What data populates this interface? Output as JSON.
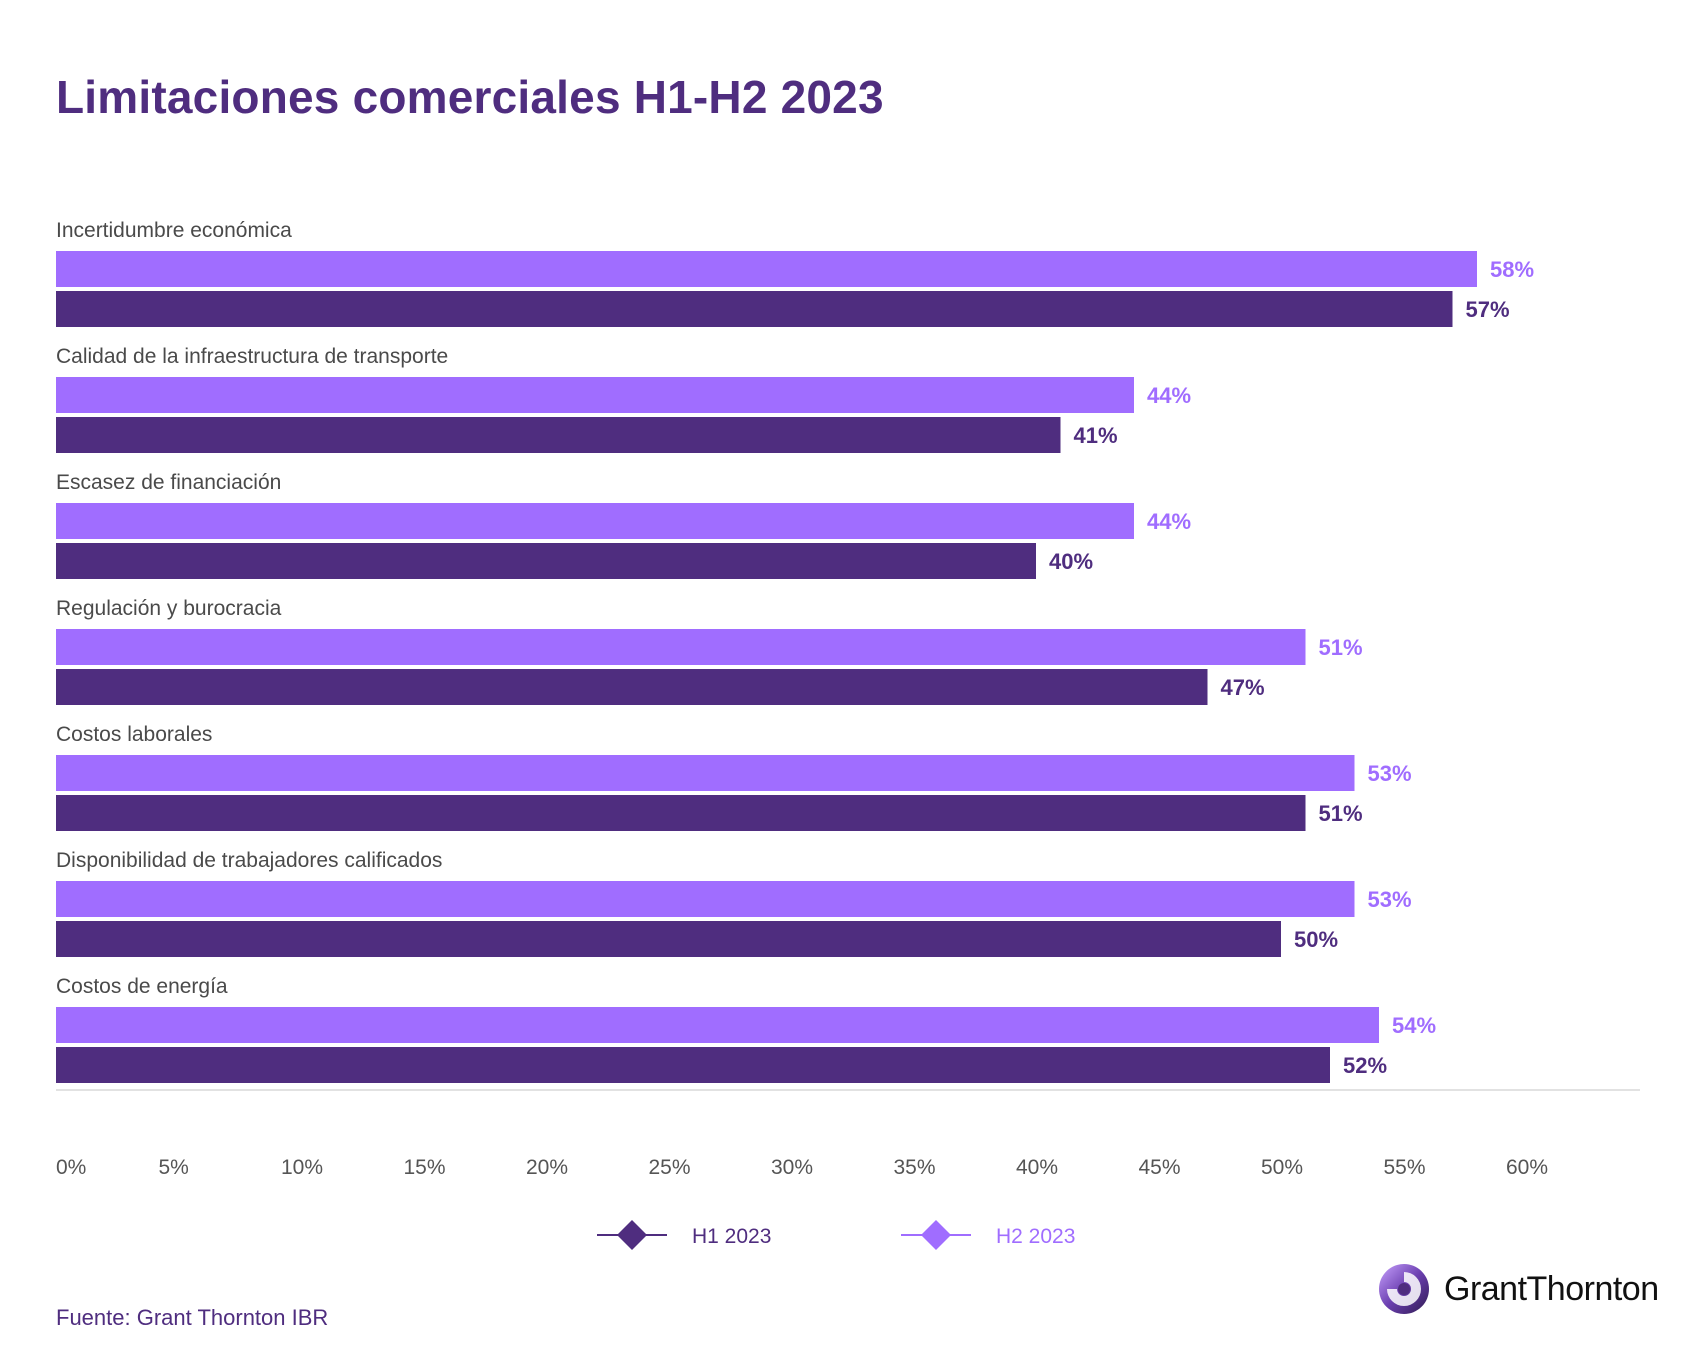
{
  "title": "Limitaciones comerciales H1-H2 2023",
  "source": "Fuente: Grant Thornton IBR",
  "brand": {
    "name": "GrantThornton",
    "logo_icon": "grant-thornton-logo-icon"
  },
  "colors": {
    "h1": "#4f2d7f",
    "h2": "#a06dff",
    "title": "#4f2d7f",
    "axis": "#d9d9d9"
  },
  "chart_data": {
    "type": "bar",
    "orientation": "horizontal",
    "categories": [
      "Incertidumbre económica",
      "Calidad de la infraestructura de transporte",
      "Escasez de financiación",
      "Regulación y burocracia",
      "Costos laborales",
      "Disponibilidad de trabajadores calificados",
      "Costos de energía"
    ],
    "series": [
      {
        "name": "H2 2023",
        "values": [
          58,
          44,
          44,
          51,
          53,
          53,
          54
        ],
        "labels": [
          "58%",
          "44%",
          "44%",
          "51%",
          "53%",
          "53%",
          "54%"
        ]
      },
      {
        "name": "H1 2023",
        "values": [
          57,
          41,
          40,
          47,
          51,
          50,
          52
        ],
        "labels": [
          "57%",
          "41%",
          "40%",
          "47%",
          "51%",
          "50%",
          "52%"
        ]
      }
    ],
    "xlim": [
      0,
      60
    ],
    "ticks": [
      "0%",
      "5%",
      "10%",
      "15%",
      "20%",
      "25%",
      "30%",
      "35%",
      "40%",
      "45%",
      "50%",
      "55%",
      "60%"
    ],
    "legend": {
      "placement": "bottom-center",
      "entries": [
        "H1 2023",
        "H2 2023"
      ]
    },
    "grid": false
  }
}
